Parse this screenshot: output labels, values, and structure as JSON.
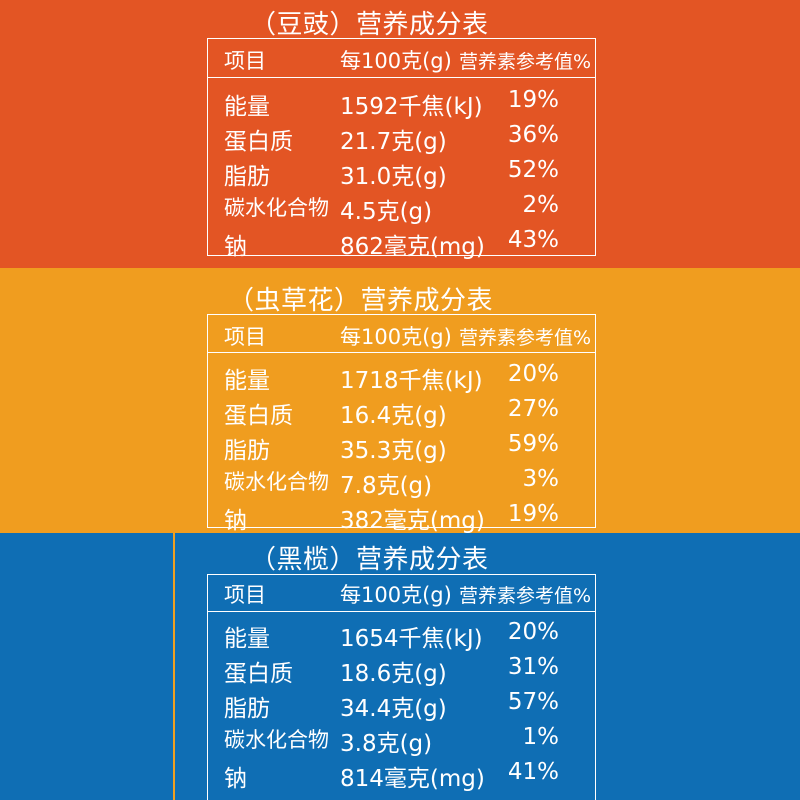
{
  "tables": [
    {
      "title": "（豆豉）营养成分表",
      "bg": "#e35524",
      "headers": [
        "项目",
        "每100克(g)",
        "营养素参考值%"
      ],
      "rows": [
        [
          "能量",
          "1592千焦(kJ)",
          "19%"
        ],
        [
          "蛋白质",
          "21.7克(g)",
          "36%"
        ],
        [
          "脂肪",
          "31.0克(g)",
          "52%"
        ],
        [
          "碳水化合物",
          "4.5克(g)",
          "2%"
        ],
        [
          "钠",
          "862毫克(mg)",
          "43%"
        ]
      ]
    },
    {
      "title": "（虫草花）营养成分表",
      "bg": "#f09d1f",
      "headers": [
        "项目",
        "每100克(g)",
        "营养素参考值%"
      ],
      "rows": [
        [
          "能量",
          "1718千焦(kJ)",
          "20%"
        ],
        [
          "蛋白质",
          "16.4克(g)",
          "27%"
        ],
        [
          "脂肪",
          "35.3克(g)",
          "59%"
        ],
        [
          "碳水化合物",
          "7.8克(g)",
          "3%"
        ],
        [
          "钠",
          "382毫克(mg)",
          "19%"
        ]
      ]
    },
    {
      "title": "（黑榄）营养成分表",
      "bg": "#0f6eb4",
      "headers": [
        "项目",
        "每100克(g)",
        "营养素参考值%"
      ],
      "rows": [
        [
          "能量",
          "1654千焦(kJ)",
          "20%"
        ],
        [
          "蛋白质",
          "18.6克(g)",
          "31%"
        ],
        [
          "脂肪",
          "34.4克(g)",
          "57%"
        ],
        [
          "碳水化合物",
          "3.8克(g)",
          "1%"
        ],
        [
          "钠",
          "814毫克(mg)",
          "41%"
        ]
      ]
    }
  ]
}
